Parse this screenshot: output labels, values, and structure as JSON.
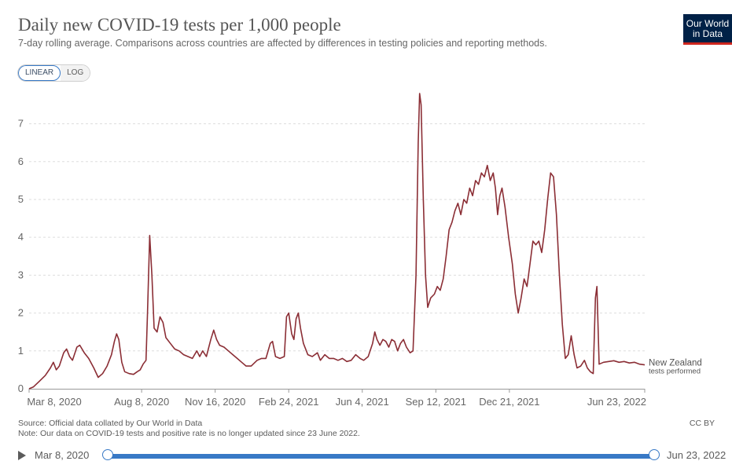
{
  "header": {
    "title": "Daily new COVID-19 tests per 1,000 people",
    "subtitle": "7-day rolling average. Comparisons across countries are affected by differences in testing policies and reporting methods.",
    "logo_text": "Our World in Data"
  },
  "controls": {
    "scale_options": [
      "LINEAR",
      "LOG"
    ],
    "selected_scale": "LINEAR"
  },
  "chart_data": {
    "type": "line",
    "title": "Daily new COVID-19 tests per 1,000 people",
    "xlabel": "",
    "ylabel": "",
    "x_range": [
      "2020-03-08",
      "2022-06-23"
    ],
    "ylim": [
      0,
      7.8
    ],
    "y_ticks": [
      0,
      1,
      2,
      3,
      4,
      5,
      6,
      7
    ],
    "x_ticks": [
      "Mar 8, 2020",
      "Aug 8, 2020",
      "Nov 16, 2020",
      "Feb 24, 2021",
      "Jun 4, 2021",
      "Sep 12, 2021",
      "Dec 21, 2021",
      "Jun 23, 2022"
    ],
    "grid": "horizontal dashed",
    "series": [
      {
        "name": "New Zealand",
        "color": "#8b2e35",
        "end_label": [
          "New Zealand",
          "tests performed"
        ],
        "points": [
          [
            "2020-03-08",
            0.0
          ],
          [
            "2020-03-14",
            0.05
          ],
          [
            "2020-03-22",
            0.2
          ],
          [
            "2020-03-30",
            0.35
          ],
          [
            "2020-04-06",
            0.55
          ],
          [
            "2020-04-10",
            0.7
          ],
          [
            "2020-04-14",
            0.5
          ],
          [
            "2020-04-18",
            0.6
          ],
          [
            "2020-04-24",
            0.95
          ],
          [
            "2020-04-28",
            1.05
          ],
          [
            "2020-05-02",
            0.85
          ],
          [
            "2020-05-06",
            0.75
          ],
          [
            "2020-05-12",
            1.1
          ],
          [
            "2020-05-16",
            1.15
          ],
          [
            "2020-05-22",
            0.95
          ],
          [
            "2020-05-28",
            0.8
          ],
          [
            "2020-06-04",
            0.55
          ],
          [
            "2020-06-10",
            0.3
          ],
          [
            "2020-06-16",
            0.4
          ],
          [
            "2020-06-22",
            0.6
          ],
          [
            "2020-06-28",
            0.9
          ],
          [
            "2020-07-02",
            1.25
          ],
          [
            "2020-07-05",
            1.45
          ],
          [
            "2020-07-08",
            1.3
          ],
          [
            "2020-07-12",
            0.7
          ],
          [
            "2020-07-16",
            0.45
          ],
          [
            "2020-07-22",
            0.4
          ],
          [
            "2020-07-28",
            0.38
          ],
          [
            "2020-08-02",
            0.45
          ],
          [
            "2020-08-06",
            0.5
          ],
          [
            "2020-08-10",
            0.65
          ],
          [
            "2020-08-14",
            0.75
          ],
          [
            "2020-08-16",
            2.0
          ],
          [
            "2020-08-19",
            4.05
          ],
          [
            "2020-08-22",
            3.0
          ],
          [
            "2020-08-25",
            1.6
          ],
          [
            "2020-08-29",
            1.5
          ],
          [
            "2020-09-02",
            1.9
          ],
          [
            "2020-09-06",
            1.75
          ],
          [
            "2020-09-10",
            1.35
          ],
          [
            "2020-09-16",
            1.2
          ],
          [
            "2020-09-22",
            1.05
          ],
          [
            "2020-09-28",
            1.0
          ],
          [
            "2020-10-04",
            0.9
          ],
          [
            "2020-10-10",
            0.85
          ],
          [
            "2020-10-16",
            0.8
          ],
          [
            "2020-10-22",
            1.0
          ],
          [
            "2020-10-26",
            0.85
          ],
          [
            "2020-10-30",
            1.0
          ],
          [
            "2020-11-04",
            0.85
          ],
          [
            "2020-11-10",
            1.3
          ],
          [
            "2020-11-14",
            1.55
          ],
          [
            "2020-11-18",
            1.3
          ],
          [
            "2020-11-22",
            1.15
          ],
          [
            "2020-11-28",
            1.1
          ],
          [
            "2020-12-04",
            1.0
          ],
          [
            "2020-12-10",
            0.9
          ],
          [
            "2020-12-16",
            0.8
          ],
          [
            "2020-12-22",
            0.7
          ],
          [
            "2020-12-28",
            0.6
          ],
          [
            "2021-01-04",
            0.6
          ],
          [
            "2021-01-12",
            0.75
          ],
          [
            "2021-01-18",
            0.8
          ],
          [
            "2021-01-24",
            0.8
          ],
          [
            "2021-01-30",
            1.2
          ],
          [
            "2021-02-02",
            1.25
          ],
          [
            "2021-02-06",
            0.85
          ],
          [
            "2021-02-12",
            0.8
          ],
          [
            "2021-02-18",
            0.85
          ],
          [
            "2021-02-21",
            1.9
          ],
          [
            "2021-02-24",
            2.0
          ],
          [
            "2021-02-28",
            1.45
          ],
          [
            "2021-03-03",
            1.3
          ],
          [
            "2021-03-06",
            1.85
          ],
          [
            "2021-03-09",
            2.0
          ],
          [
            "2021-03-12",
            1.6
          ],
          [
            "2021-03-16",
            1.2
          ],
          [
            "2021-03-22",
            0.9
          ],
          [
            "2021-03-28",
            0.85
          ],
          [
            "2021-04-04",
            0.95
          ],
          [
            "2021-04-08",
            0.75
          ],
          [
            "2021-04-14",
            0.9
          ],
          [
            "2021-04-20",
            0.8
          ],
          [
            "2021-04-26",
            0.8
          ],
          [
            "2021-05-02",
            0.75
          ],
          [
            "2021-05-08",
            0.8
          ],
          [
            "2021-05-14",
            0.72
          ],
          [
            "2021-05-20",
            0.75
          ],
          [
            "2021-05-26",
            0.9
          ],
          [
            "2021-06-01",
            0.8
          ],
          [
            "2021-06-06",
            0.75
          ],
          [
            "2021-06-12",
            0.85
          ],
          [
            "2021-06-18",
            1.2
          ],
          [
            "2021-06-21",
            1.5
          ],
          [
            "2021-06-24",
            1.3
          ],
          [
            "2021-06-28",
            1.15
          ],
          [
            "2021-07-02",
            1.3
          ],
          [
            "2021-07-06",
            1.25
          ],
          [
            "2021-07-10",
            1.1
          ],
          [
            "2021-07-14",
            1.3
          ],
          [
            "2021-07-18",
            1.25
          ],
          [
            "2021-07-22",
            1.0
          ],
          [
            "2021-07-26",
            1.2
          ],
          [
            "2021-07-30",
            1.3
          ],
          [
            "2021-08-03",
            1.1
          ],
          [
            "2021-08-08",
            0.95
          ],
          [
            "2021-08-12",
            1.0
          ],
          [
            "2021-08-16",
            3.0
          ],
          [
            "2021-08-19",
            6.5
          ],
          [
            "2021-08-21",
            7.8
          ],
          [
            "2021-08-23",
            7.5
          ],
          [
            "2021-08-26",
            5.0
          ],
          [
            "2021-08-29",
            3.0
          ],
          [
            "2021-09-01",
            2.15
          ],
          [
            "2021-09-05",
            2.4
          ],
          [
            "2021-09-10",
            2.5
          ],
          [
            "2021-09-14",
            2.7
          ],
          [
            "2021-09-18",
            2.6
          ],
          [
            "2021-09-22",
            2.9
          ],
          [
            "2021-09-26",
            3.5
          ],
          [
            "2021-09-30",
            4.2
          ],
          [
            "2021-10-04",
            4.4
          ],
          [
            "2021-10-08",
            4.7
          ],
          [
            "2021-10-12",
            4.9
          ],
          [
            "2021-10-16",
            4.6
          ],
          [
            "2021-10-20",
            5.0
          ],
          [
            "2021-10-24",
            4.9
          ],
          [
            "2021-10-28",
            5.3
          ],
          [
            "2021-11-01",
            5.1
          ],
          [
            "2021-11-05",
            5.5
          ],
          [
            "2021-11-09",
            5.4
          ],
          [
            "2021-11-13",
            5.7
          ],
          [
            "2021-11-17",
            5.6
          ],
          [
            "2021-11-21",
            5.9
          ],
          [
            "2021-11-25",
            5.5
          ],
          [
            "2021-11-29",
            5.7
          ],
          [
            "2021-12-02",
            5.3
          ],
          [
            "2021-12-05",
            4.6
          ],
          [
            "2021-12-08",
            5.1
          ],
          [
            "2021-12-11",
            5.3
          ],
          [
            "2021-12-15",
            4.8
          ],
          [
            "2021-12-20",
            4.0
          ],
          [
            "2021-12-25",
            3.3
          ],
          [
            "2021-12-29",
            2.5
          ],
          [
            "2022-01-02",
            2.0
          ],
          [
            "2022-01-06",
            2.4
          ],
          [
            "2022-01-10",
            2.9
          ],
          [
            "2022-01-14",
            2.7
          ],
          [
            "2022-01-18",
            3.3
          ],
          [
            "2022-01-22",
            3.9
          ],
          [
            "2022-01-26",
            3.8
          ],
          [
            "2022-01-30",
            3.9
          ],
          [
            "2022-02-03",
            3.6
          ],
          [
            "2022-02-07",
            4.2
          ],
          [
            "2022-02-11",
            5.0
          ],
          [
            "2022-02-15",
            5.7
          ],
          [
            "2022-02-19",
            5.6
          ],
          [
            "2022-02-23",
            4.6
          ],
          [
            "2022-02-27",
            3.0
          ],
          [
            "2022-03-03",
            1.7
          ],
          [
            "2022-03-07",
            0.8
          ],
          [
            "2022-03-11",
            0.9
          ],
          [
            "2022-03-15",
            1.4
          ],
          [
            "2022-03-19",
            0.9
          ],
          [
            "2022-03-23",
            0.55
          ],
          [
            "2022-03-28",
            0.6
          ],
          [
            "2022-04-02",
            0.75
          ],
          [
            "2022-04-06",
            0.55
          ],
          [
            "2022-04-10",
            0.45
          ],
          [
            "2022-04-14",
            0.4
          ],
          [
            "2022-04-17",
            2.4
          ],
          [
            "2022-04-19",
            2.7
          ],
          [
            "2022-04-22",
            0.65
          ],
          [
            "2022-04-28",
            0.7
          ],
          [
            "2022-05-05",
            0.72
          ],
          [
            "2022-05-12",
            0.74
          ],
          [
            "2022-05-19",
            0.7
          ],
          [
            "2022-05-26",
            0.72
          ],
          [
            "2022-06-02",
            0.68
          ],
          [
            "2022-06-09",
            0.7
          ],
          [
            "2022-06-16",
            0.65
          ],
          [
            "2022-06-23",
            0.63
          ]
        ]
      }
    ]
  },
  "footer": {
    "source": "Source: Official data collated by Our World in Data",
    "note": "Note: Our data on COVID-19 tests and positive rate is no longer updated since 23 June 2022.",
    "license": "CC BY"
  },
  "timeline": {
    "start_label": "Mar 8, 2020",
    "end_label": "Jun 23, 2022"
  }
}
